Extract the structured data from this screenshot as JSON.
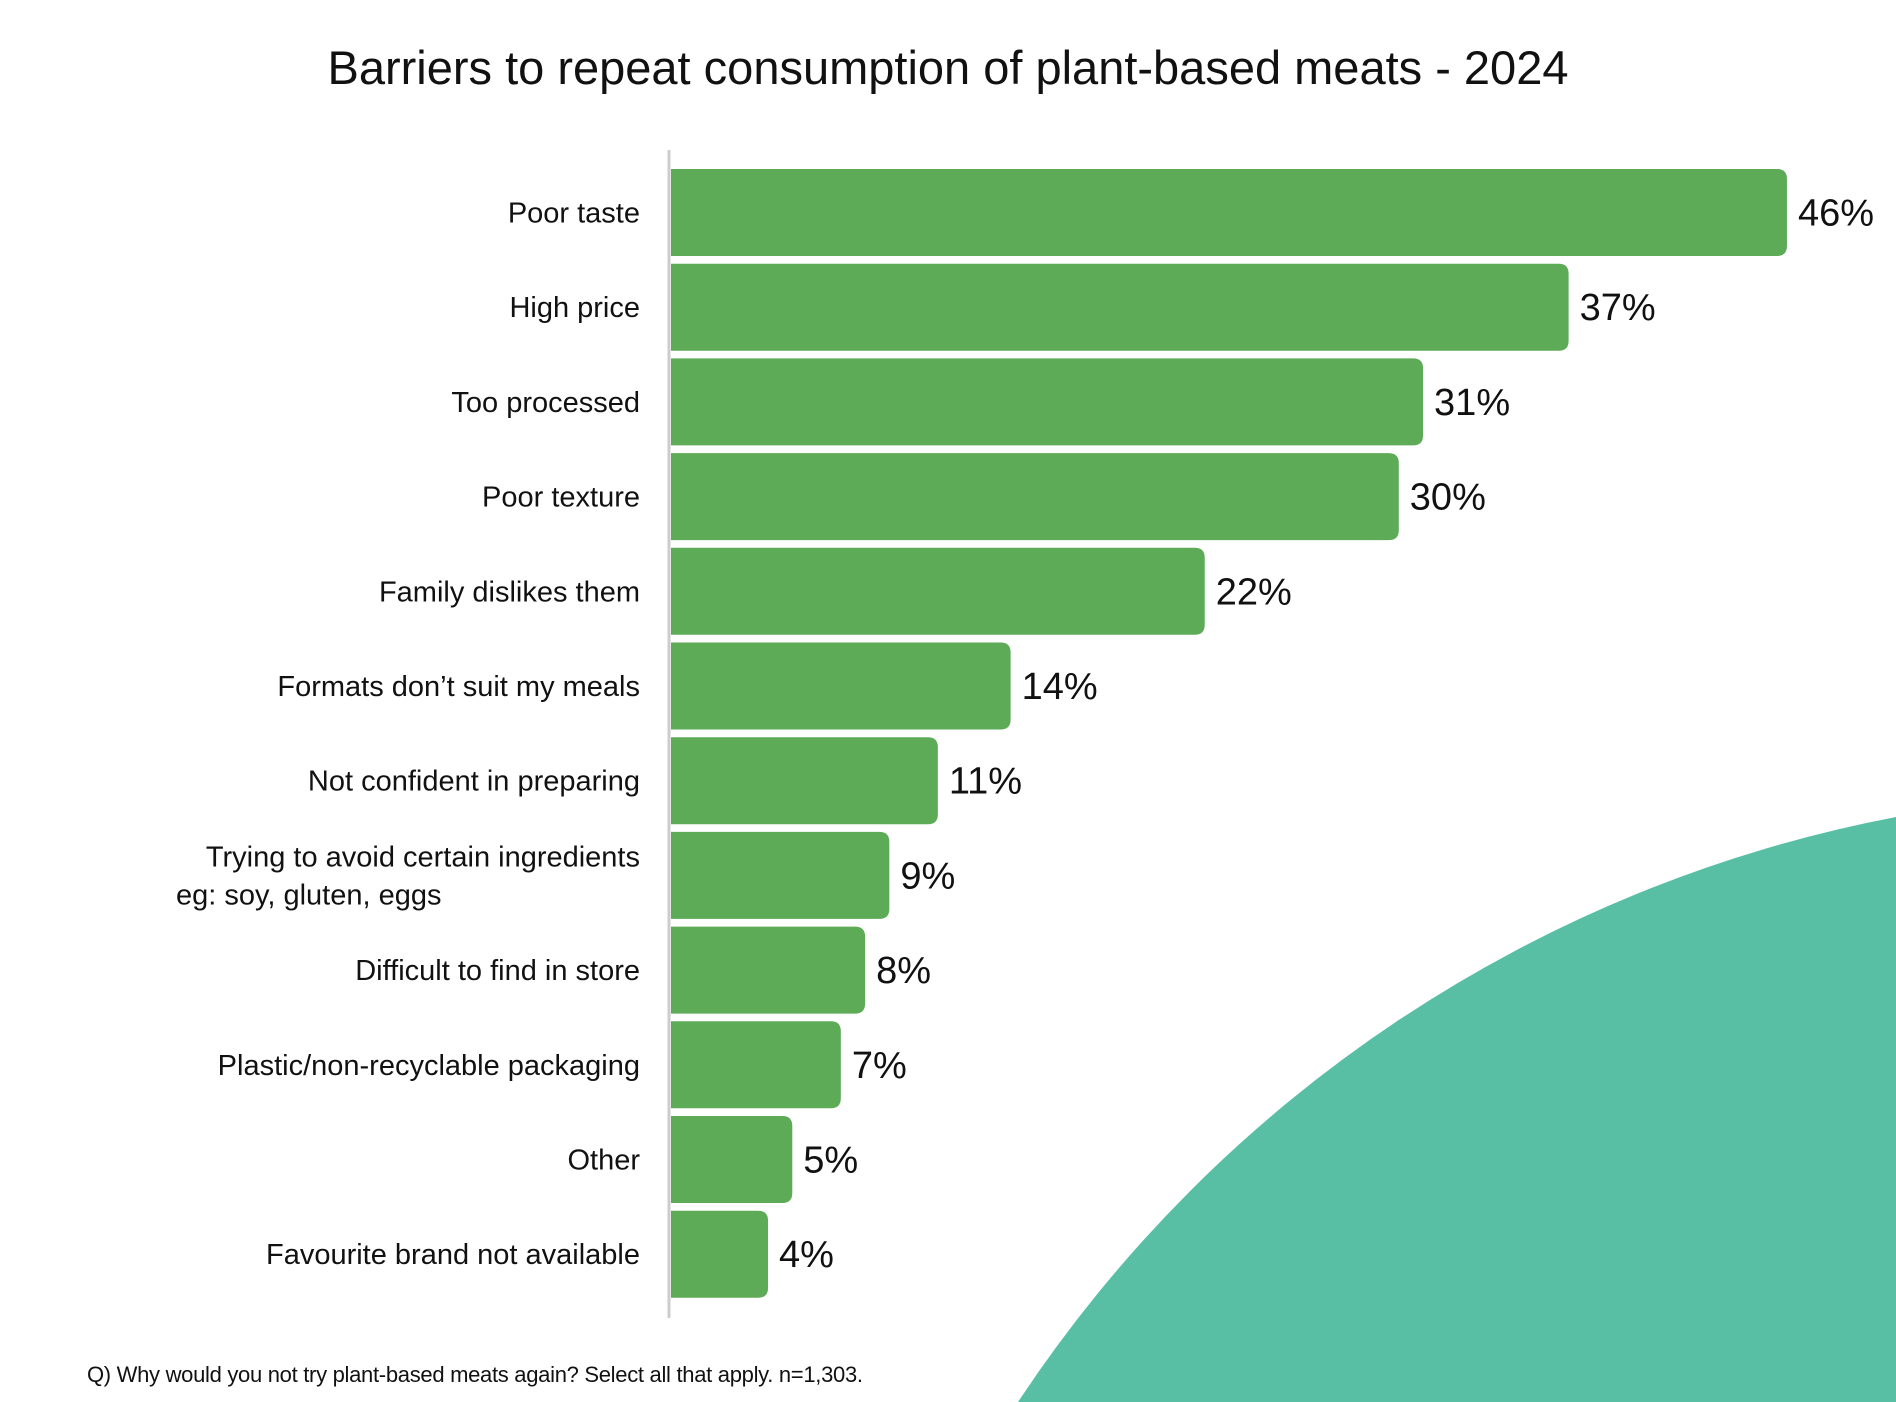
{
  "chart_data": {
    "type": "bar",
    "orientation": "horizontal",
    "title": "Barriers to repeat consumption of plant-based meats - 2024",
    "categories": [
      "Poor taste",
      "High price",
      "Too processed",
      "Poor texture",
      "Family dislikes them",
      "Formats don’t suit my meals",
      "Not confident in preparing",
      "Trying to avoid certain ingredients\neg: soy, gluten, eggs",
      "Difficult to find in store",
      "Plastic/non-recyclable packaging",
      "Other",
      "Favourite brand not available"
    ],
    "values": [
      46,
      37,
      31,
      30,
      22,
      14,
      11,
      9,
      8,
      7,
      5,
      4
    ],
    "value_labels": [
      "46%",
      "37%",
      "31%",
      "30%",
      "22%",
      "14%",
      "11%",
      "9%",
      "8%",
      "7%",
      "5%",
      "4%"
    ],
    "unit": "%",
    "grid": false,
    "legend": "none",
    "colors": {
      "bar": "#5daa57",
      "decoration": "#58bfa5",
      "axis": "#cccccc"
    }
  },
  "footnote": "Q) Why would you not try plant-based meats again? Select all that apply. n=1,303."
}
